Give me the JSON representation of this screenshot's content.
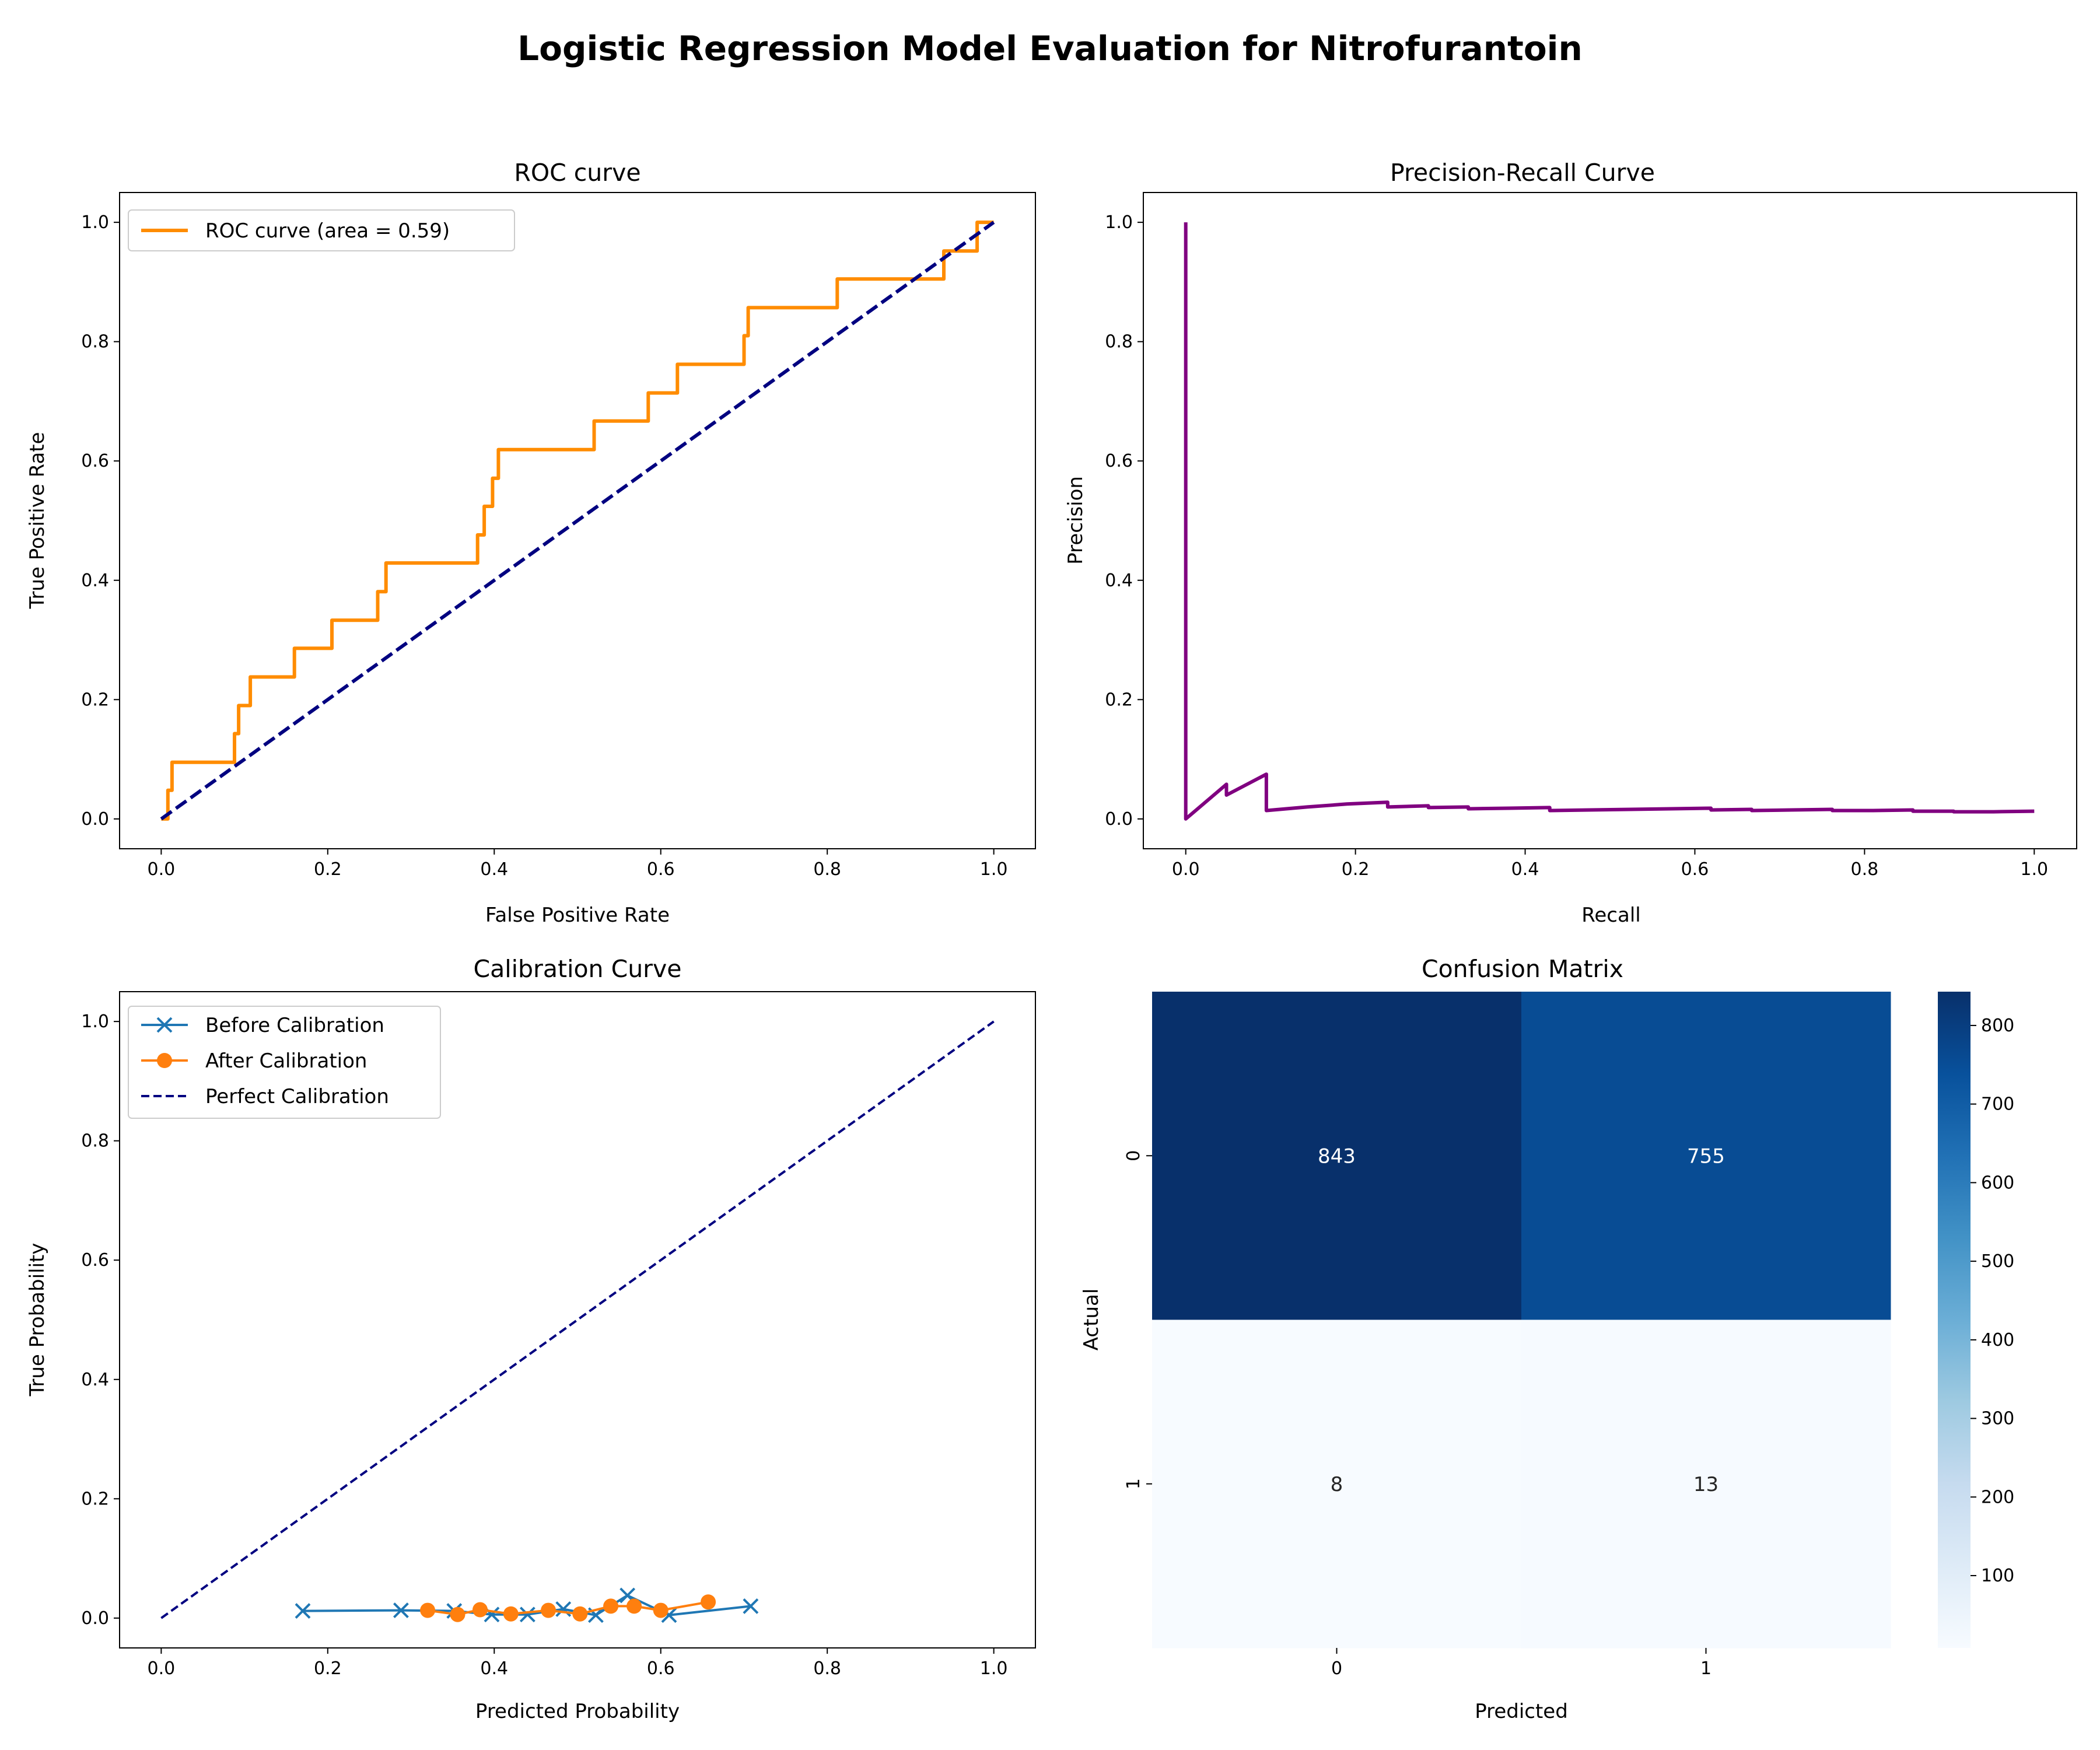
{
  "figure": {
    "suptitle": "Logistic Regression Model Evaluation for Nitrofurantoin"
  },
  "chart_data": [
    {
      "type": "line",
      "title": "ROC curve",
      "xlabel": "False Positive Rate",
      "ylabel": "True Positive Rate",
      "xlim": [
        -0.05,
        1.05
      ],
      "ylim": [
        -0.05,
        1.05
      ],
      "xticks": [
        0.0,
        0.2,
        0.4,
        0.6,
        0.8,
        1.0
      ],
      "yticks": [
        0.0,
        0.2,
        0.4,
        0.6,
        0.8,
        1.0
      ],
      "legend_position": "upper-left",
      "series": [
        {
          "name": "ROC curve (area = 0.59)",
          "color": "#ff8c00",
          "style": "solid",
          "x": [
            0.0,
            0.0,
            0.008,
            0.008,
            0.013,
            0.013,
            0.088,
            0.088,
            0.093,
            0.093,
            0.107,
            0.107,
            0.16,
            0.16,
            0.205,
            0.205,
            0.26,
            0.26,
            0.27,
            0.27,
            0.38,
            0.38,
            0.388,
            0.388,
            0.398,
            0.398,
            0.405,
            0.405,
            0.52,
            0.52,
            0.585,
            0.585,
            0.62,
            0.62,
            0.7,
            0.7,
            0.705,
            0.705,
            0.713,
            0.713,
            0.812,
            0.812,
            0.826,
            0.826,
            0.94,
            0.94,
            0.97,
            0.97,
            0.98,
            0.98,
            1.0
          ],
          "y": [
            0.0,
            0.0,
            0.0,
            0.048,
            0.048,
            0.095,
            0.095,
            0.143,
            0.143,
            0.19,
            0.19,
            0.238,
            0.238,
            0.286,
            0.286,
            0.333,
            0.333,
            0.381,
            0.381,
            0.429,
            0.429,
            0.476,
            0.476,
            0.524,
            0.524,
            0.571,
            0.571,
            0.619,
            0.619,
            0.667,
            0.667,
            0.714,
            0.714,
            0.762,
            0.762,
            0.81,
            0.81,
            0.857,
            0.857,
            0.857,
            0.857,
            0.905,
            0.905,
            0.905,
            0.905,
            0.952,
            0.952,
            0.952,
            0.952,
            1.0,
            1.0
          ]
        },
        {
          "name": "",
          "color": "#000080",
          "style": "dashed",
          "x": [
            0.0,
            1.0
          ],
          "y": [
            0.0,
            1.0
          ]
        }
      ]
    },
    {
      "type": "line",
      "title": "Precision-Recall Curve",
      "xlabel": "Recall",
      "ylabel": "Precision",
      "xlim": [
        -0.05,
        1.05
      ],
      "ylim": [
        -0.05,
        1.05
      ],
      "xticks": [
        0.0,
        0.2,
        0.4,
        0.6,
        0.8,
        1.0
      ],
      "yticks": [
        0.0,
        0.2,
        0.4,
        0.6,
        0.8,
        1.0
      ],
      "series": [
        {
          "name": "",
          "color": "#800080",
          "style": "solid",
          "x": [
            0.0,
            0.0,
            0.048,
            0.048,
            0.095,
            0.095,
            0.143,
            0.143,
            0.19,
            0.19,
            0.238,
            0.238,
            0.286,
            0.286,
            0.333,
            0.333,
            0.381,
            0.381,
            0.429,
            0.429,
            0.476,
            0.524,
            0.571,
            0.619,
            0.619,
            0.667,
            0.667,
            0.714,
            0.762,
            0.762,
            0.81,
            0.857,
            0.857,
            0.905,
            0.905,
            0.952,
            1.0
          ],
          "y": [
            1.0,
            0.0,
            0.058,
            0.04,
            0.075,
            0.014,
            0.02,
            0.02,
            0.025,
            0.025,
            0.028,
            0.02,
            0.022,
            0.019,
            0.02,
            0.017,
            0.018,
            0.018,
            0.019,
            0.014,
            0.015,
            0.016,
            0.017,
            0.018,
            0.015,
            0.016,
            0.014,
            0.015,
            0.016,
            0.014,
            0.014,
            0.015,
            0.013,
            0.013,
            0.012,
            0.012,
            0.013
          ]
        }
      ]
    },
    {
      "type": "line",
      "title": "Calibration Curve",
      "xlabel": "Predicted Probability",
      "ylabel": "True Probability",
      "xlim": [
        -0.05,
        1.05
      ],
      "ylim": [
        -0.05,
        1.05
      ],
      "xticks": [
        0.0,
        0.2,
        0.4,
        0.6,
        0.8,
        1.0
      ],
      "yticks": [
        0.0,
        0.2,
        0.4,
        0.6,
        0.8,
        1.0
      ],
      "legend_position": "upper-left",
      "series": [
        {
          "name": "Before Calibration",
          "color": "#1f77b4",
          "style": "solid",
          "marker": "x",
          "x": [
            0.17,
            0.288,
            0.352,
            0.397,
            0.44,
            0.483,
            0.522,
            0.56,
            0.61,
            0.708
          ],
          "y": [
            0.012,
            0.013,
            0.012,
            0.006,
            0.006,
            0.015,
            0.005,
            0.038,
            0.005,
            0.02
          ]
        },
        {
          "name": "After Calibration",
          "color": "#ff7f0e",
          "style": "solid",
          "marker": "o",
          "x": [
            0.32,
            0.356,
            0.383,
            0.42,
            0.465,
            0.503,
            0.54,
            0.568,
            0.6,
            0.657
          ],
          "y": [
            0.013,
            0.006,
            0.014,
            0.007,
            0.013,
            0.007,
            0.02,
            0.02,
            0.013,
            0.027
          ]
        },
        {
          "name": "Perfect Calibration",
          "color": "#000080",
          "style": "dashed",
          "marker": "",
          "x": [
            0.0,
            1.0
          ],
          "y": [
            0.0,
            1.0
          ]
        }
      ]
    },
    {
      "type": "heatmap",
      "title": "Confusion Matrix",
      "xlabel": "Predicted",
      "ylabel": "Actual",
      "x_categories": [
        "0",
        "1"
      ],
      "y_categories": [
        "0",
        "1"
      ],
      "values": [
        [
          843,
          755
        ],
        [
          8,
          13
        ]
      ],
      "colormap": "Blues",
      "colorbar_range": [
        8,
        843
      ],
      "colorbar_ticks": [
        100,
        200,
        300,
        400,
        500,
        600,
        700,
        800
      ]
    }
  ]
}
